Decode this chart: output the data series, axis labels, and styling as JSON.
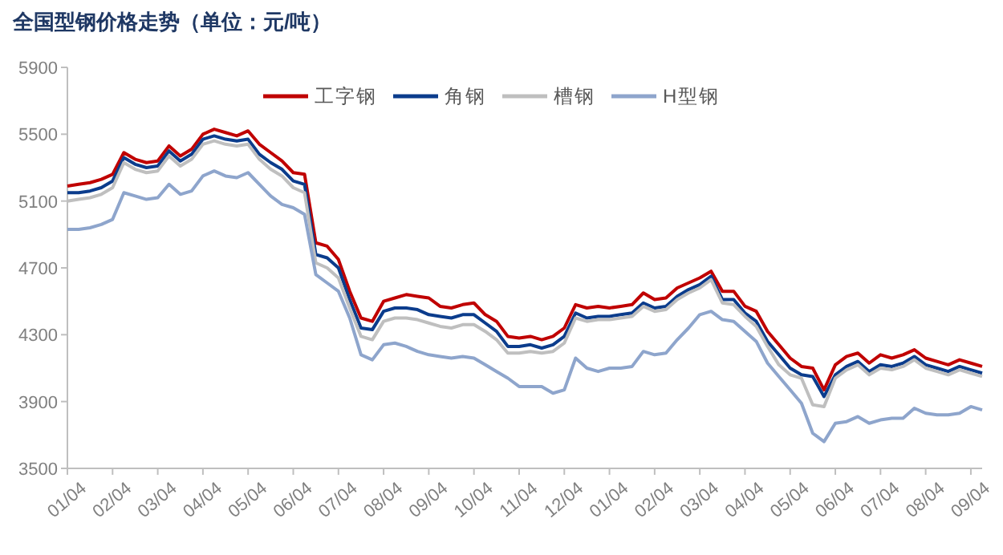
{
  "chart_data": {
    "type": "line",
    "title": "全国型钢价格走势（单位：元/吨）",
    "categories": [
      "01/04",
      null,
      null,
      null,
      "02/04",
      null,
      null,
      null,
      "03/04",
      null,
      null,
      null,
      "04/04",
      null,
      null,
      null,
      "05/04",
      null,
      null,
      null,
      "06/04",
      null,
      null,
      null,
      "07/04",
      null,
      null,
      null,
      "08/04",
      null,
      null,
      null,
      "09/04",
      null,
      null,
      null,
      "10/04",
      null,
      null,
      null,
      "11/04",
      null,
      null,
      null,
      "12/04",
      null,
      null,
      null,
      "01/04",
      null,
      null,
      null,
      "02/04",
      null,
      null,
      null,
      "03/04",
      null,
      null,
      null,
      "04/04",
      null,
      null,
      null,
      "05/04",
      null,
      null,
      null,
      "06/04",
      null,
      null,
      null,
      "07/04",
      null,
      null,
      null,
      "08/04",
      null,
      null,
      null,
      "09/04",
      null
    ],
    "series": [
      {
        "name": "工字钢",
        "color": "#c00000",
        "values": [
          5190,
          5200,
          5210,
          5230,
          5260,
          5390,
          5350,
          5330,
          5340,
          5430,
          5370,
          5410,
          5500,
          5530,
          5510,
          5490,
          5520,
          5440,
          5390,
          5340,
          5270,
          5260,
          4850,
          4830,
          4750,
          4560,
          4400,
          4380,
          4500,
          4520,
          4540,
          4530,
          4520,
          4470,
          4460,
          4480,
          4490,
          4420,
          4380,
          4290,
          4280,
          4290,
          4270,
          4290,
          4340,
          4480,
          4460,
          4470,
          4460,
          4470,
          4480,
          4550,
          4510,
          4520,
          4580,
          4610,
          4640,
          4680,
          4560,
          4560,
          4470,
          4440,
          4320,
          4240,
          4160,
          4110,
          4100,
          3970,
          4120,
          4170,
          4190,
          4130,
          4180,
          4160,
          4180,
          4210,
          4160,
          4140,
          4120,
          4150,
          4130,
          4110
        ]
      },
      {
        "name": "角钢",
        "color": "#0b3c8c",
        "values": [
          5150,
          5150,
          5160,
          5180,
          5220,
          5360,
          5320,
          5300,
          5310,
          5400,
          5340,
          5380,
          5470,
          5490,
          5470,
          5460,
          5470,
          5380,
          5330,
          5290,
          5220,
          5200,
          4780,
          4760,
          4700,
          4510,
          4340,
          4330,
          4440,
          4460,
          4460,
          4450,
          4420,
          4410,
          4400,
          4420,
          4420,
          4370,
          4320,
          4230,
          4230,
          4240,
          4220,
          4240,
          4290,
          4430,
          4400,
          4410,
          4410,
          4420,
          4430,
          4490,
          4460,
          4470,
          4530,
          4570,
          4600,
          4650,
          4510,
          4510,
          4430,
          4380,
          4260,
          4180,
          4100,
          4060,
          4050,
          3930,
          4060,
          4110,
          4140,
          4080,
          4120,
          4110,
          4130,
          4170,
          4120,
          4100,
          4080,
          4110,
          4090,
          4070
        ]
      },
      {
        "name": "槽钢",
        "color": "#bfbfbf",
        "values": [
          5100,
          5110,
          5120,
          5140,
          5180,
          5330,
          5290,
          5270,
          5280,
          5370,
          5310,
          5350,
          5440,
          5460,
          5440,
          5430,
          5440,
          5350,
          5290,
          5250,
          5180,
          5150,
          4730,
          4700,
          4640,
          4460,
          4290,
          4270,
          4380,
          4400,
          4400,
          4390,
          4370,
          4350,
          4340,
          4360,
          4360,
          4320,
          4270,
          4190,
          4190,
          4200,
          4190,
          4200,
          4250,
          4400,
          4380,
          4390,
          4390,
          4400,
          4410,
          4470,
          4440,
          4450,
          4510,
          4550,
          4580,
          4630,
          4490,
          4480,
          4410,
          4350,
          4230,
          4120,
          4060,
          4040,
          3880,
          3870,
          4040,
          4090,
          4120,
          4060,
          4100,
          4090,
          4110,
          4150,
          4100,
          4080,
          4060,
          4090,
          4070,
          4050
        ]
      },
      {
        "name": "H型钢",
        "color": "#8ea5cc",
        "values": [
          4930,
          4930,
          4940,
          4960,
          4990,
          5150,
          5130,
          5110,
          5120,
          5200,
          5140,
          5160,
          5250,
          5280,
          5250,
          5240,
          5270,
          5200,
          5130,
          5080,
          5060,
          5020,
          4660,
          4610,
          4560,
          4400,
          4180,
          4150,
          4240,
          4250,
          4230,
          4200,
          4180,
          4170,
          4160,
          4170,
          4160,
          4120,
          4080,
          4040,
          3990,
          3990,
          3990,
          3950,
          3970,
          4160,
          4100,
          4080,
          4100,
          4100,
          4110,
          4200,
          4180,
          4190,
          4270,
          4340,
          4420,
          4440,
          4390,
          4380,
          4320,
          4260,
          4130,
          4050,
          3970,
          3890,
          3710,
          3660,
          3770,
          3780,
          3810,
          3770,
          3790,
          3800,
          3800,
          3860,
          3830,
          3820,
          3820,
          3830,
          3870,
          3850
        ]
      }
    ],
    "ylim": [
      3500,
      5900
    ],
    "yticks": [
      3500,
      3900,
      4300,
      4700,
      5100,
      5500,
      5900
    ],
    "grid": false,
    "legend": "top right",
    "marker": "none",
    "line_style": "solid"
  }
}
